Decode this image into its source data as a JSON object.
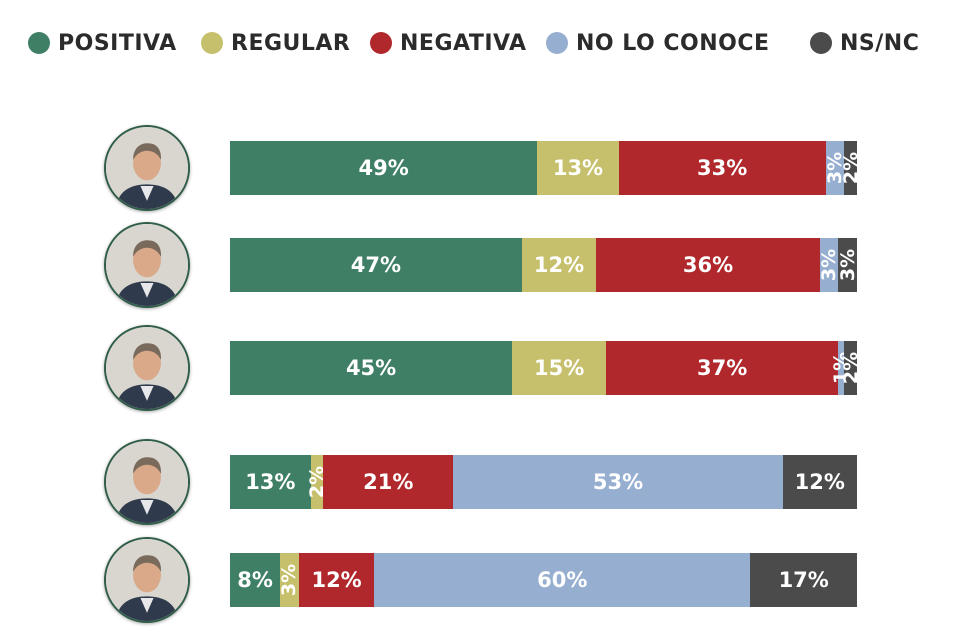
{
  "legend": [
    {
      "label": "POSITIVA",
      "color": "#3f7f66"
    },
    {
      "label": "REGULAR",
      "color": "#c6bf6b"
    },
    {
      "label": "NEGATIVA",
      "color": "#b0282c"
    },
    {
      "label": "NO LO CONOCE",
      "color": "#96aed0"
    },
    {
      "label": "NS/NC",
      "color": "#4b4b4b"
    }
  ],
  "chart_data": {
    "type": "bar",
    "orientation": "horizontal",
    "stacked": true,
    "categories": [
      "",
      "",
      "",
      "",
      ""
    ],
    "series": [
      {
        "name": "POSITIVA",
        "color": "#3f7f66",
        "values": [
          49,
          47,
          45,
          13,
          8
        ],
        "labels": [
          "49%",
          "47%",
          "45%",
          "13%",
          "8%"
        ]
      },
      {
        "name": "REGULAR",
        "color": "#c6bf6b",
        "values": [
          13,
          12,
          15,
          2,
          3
        ],
        "labels": [
          "13%",
          "12%",
          "15%",
          "2%",
          "3%"
        ]
      },
      {
        "name": "NEGATIVA",
        "color": "#b0282c",
        "values": [
          33,
          36,
          37,
          21,
          12
        ],
        "labels": [
          "33%",
          "36%",
          "37%",
          "21%",
          "12%"
        ]
      },
      {
        "name": "NO LO CONOCE",
        "color": "#96aed0",
        "values": [
          3,
          3,
          1,
          53,
          60
        ],
        "labels": [
          "3%",
          "3%",
          "1%",
          "53%",
          "60%"
        ]
      },
      {
        "name": "NS/NC",
        "color": "#4b4b4b",
        "values": [
          2,
          3,
          2,
          12,
          17
        ],
        "labels": [
          "2%",
          "3%",
          "2%",
          "12%",
          "17%"
        ]
      }
    ],
    "legend_position": "top",
    "grid": false
  },
  "rows": [
    {
      "avatar": "person-photo-icon"
    },
    {
      "avatar": "person-photo-icon"
    },
    {
      "avatar": "person-photo-icon"
    },
    {
      "avatar": "person-photo-icon"
    },
    {
      "avatar": "person-photo-icon"
    }
  ]
}
